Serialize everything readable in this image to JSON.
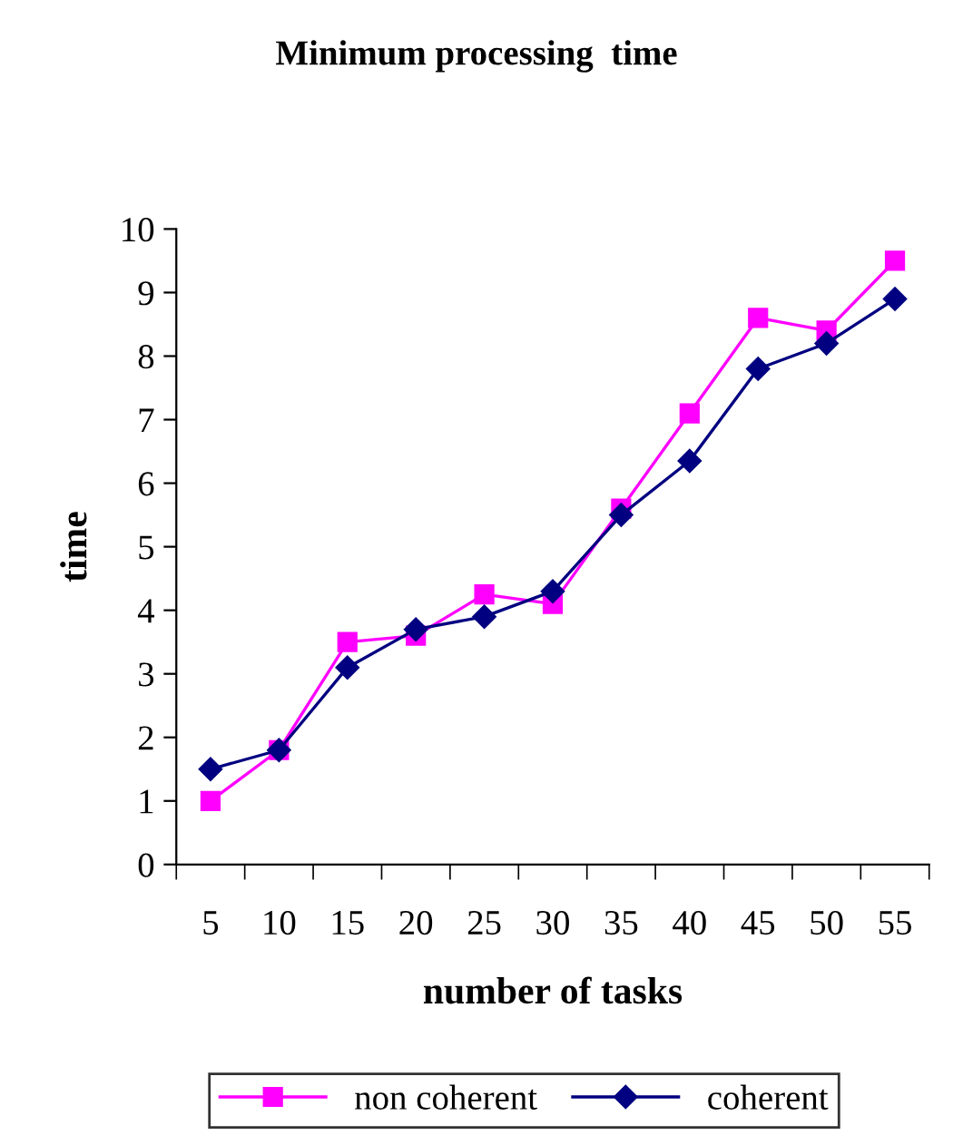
{
  "chart_data": {
    "type": "line",
    "title": "Minimum processing  time",
    "xlabel": "number of tasks",
    "ylabel": "time",
    "categories": [
      "5",
      "10",
      "15",
      "20",
      "25",
      "30",
      "35",
      "40",
      "45",
      "50",
      "55"
    ],
    "series": [
      {
        "name": "non coherent",
        "color": "#ff00ff",
        "marker": "square",
        "values": [
          1.0,
          1.8,
          3.5,
          3.6,
          4.25,
          4.1,
          5.6,
          7.1,
          8.6,
          8.4,
          9.5
        ]
      },
      {
        "name": "coherent",
        "color": "#000080",
        "marker": "diamond",
        "values": [
          1.5,
          1.8,
          3.1,
          3.7,
          3.9,
          4.3,
          5.5,
          6.35,
          7.8,
          8.2,
          8.9
        ]
      }
    ],
    "ylim": [
      0,
      10
    ],
    "yticks": [
      0,
      1,
      2,
      3,
      4,
      5,
      6,
      7,
      8,
      9,
      10
    ],
    "grid": false,
    "legend": "bottom",
    "line_style": "solid"
  }
}
